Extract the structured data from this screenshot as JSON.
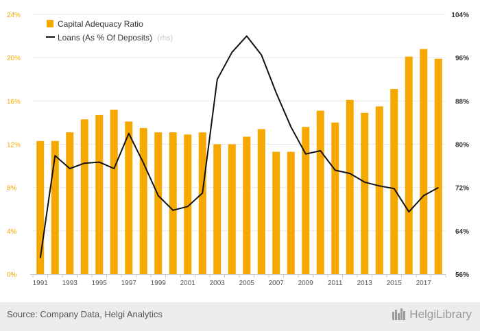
{
  "chart_data": {
    "type": "bar+line",
    "categories": [
      "1991",
      "1992",
      "1993",
      "1994",
      "1995",
      "1996",
      "1997",
      "1998",
      "1999",
      "2000",
      "2001",
      "2002",
      "2003",
      "2004",
      "2005",
      "2006",
      "2007",
      "2008",
      "2009",
      "2010",
      "2011",
      "2012",
      "2013",
      "2014",
      "2015",
      "2016",
      "2017",
      "2018"
    ],
    "x_tick_labels": [
      "1991",
      "1993",
      "1995",
      "1997",
      "1999",
      "2001",
      "2003",
      "2005",
      "2007",
      "2009",
      "2011",
      "2013",
      "2015",
      "2017"
    ],
    "series": [
      {
        "name": "Capital Adequacy Ratio",
        "type": "bar",
        "axis": "left",
        "color": "#f5a800",
        "values": [
          12.3,
          12.3,
          13.1,
          14.3,
          14.7,
          15.2,
          14.1,
          13.5,
          13.1,
          13.1,
          12.9,
          13.1,
          12.0,
          12.0,
          12.7,
          13.4,
          11.3,
          11.3,
          13.6,
          15.1,
          14.0,
          16.1,
          14.9,
          15.5,
          17.1,
          20.1,
          20.8,
          19.9
        ]
      },
      {
        "name": "Loans (As % Of Deposits)",
        "suffix": "(rhs)",
        "type": "line",
        "axis": "right",
        "color": "#111111",
        "values": [
          59,
          77.9,
          75.5,
          76.5,
          76.7,
          75.5,
          82,
          76.5,
          70.5,
          67.8,
          68.5,
          71,
          92,
          97,
          100,
          96.5,
          89.5,
          83.2,
          78.2,
          78.8,
          75.2,
          74.6,
          73,
          72.3,
          71.8,
          67.5,
          70.5,
          72
        ]
      }
    ],
    "y_left": {
      "ylim": [
        0,
        24
      ],
      "ticks": [
        "0%",
        "4%",
        "8%",
        "12%",
        "16%",
        "20%",
        "24%"
      ],
      "color": "#f5a800"
    },
    "y_right": {
      "ylim": [
        56,
        104
      ],
      "ticks": [
        "56%",
        "64%",
        "72%",
        "80%",
        "88%",
        "96%",
        "104%"
      ]
    },
    "grid": true,
    "legend_position": "top-left",
    "title": "",
    "xlabel": "",
    "ylabel": ""
  },
  "footer": {
    "source": "Source: Company Data, Helgi Analytics",
    "brand": "HelgiLibrary"
  }
}
